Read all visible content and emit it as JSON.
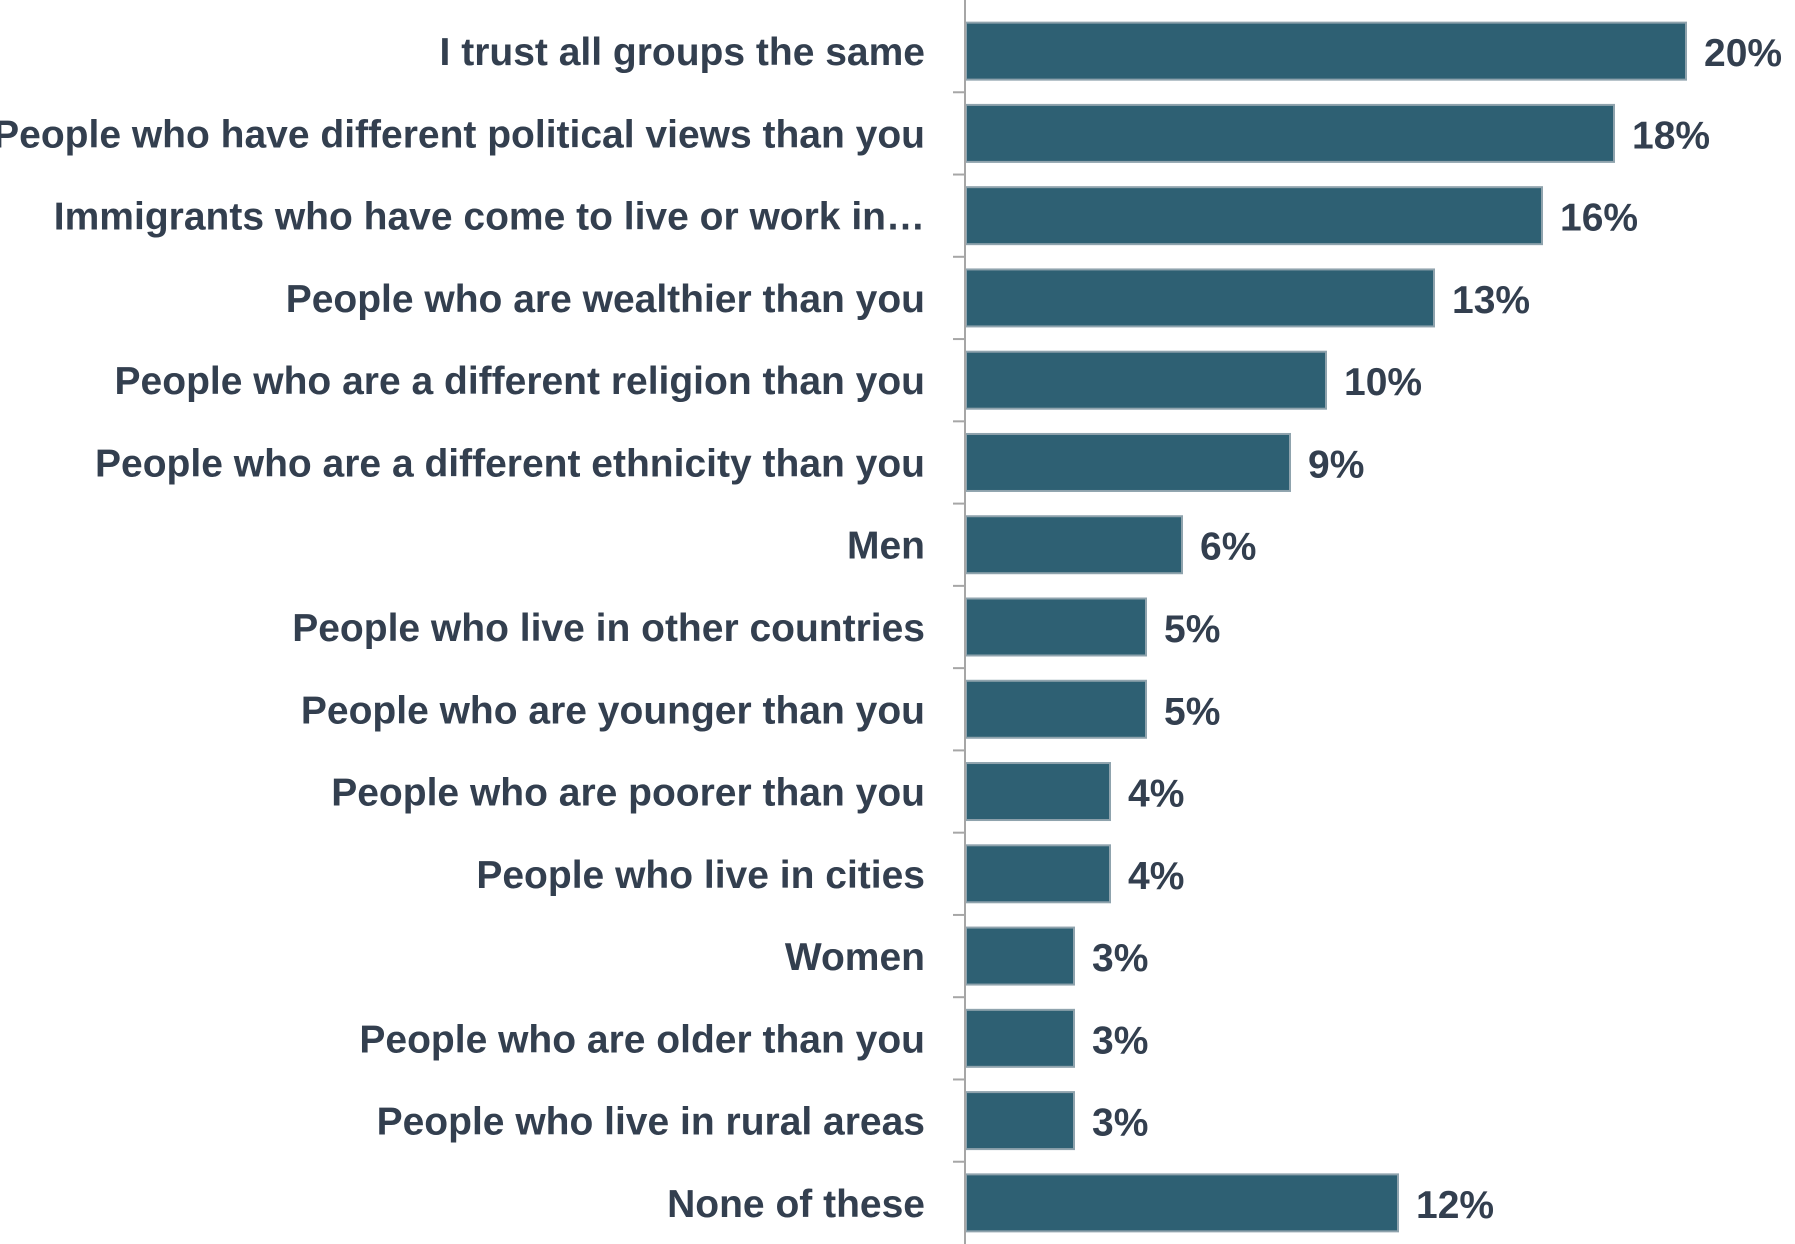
{
  "chart_data": {
    "type": "bar",
    "orientation": "horizontal",
    "title": "",
    "xlabel": "",
    "ylabel": "",
    "xlim": [
      0,
      21
    ],
    "grid": false,
    "legend": "none",
    "bar_color": "#2e6073",
    "categories": [
      "I trust all groups the same",
      "People who have different political views than you",
      "Immigrants who have come to live or work in…",
      "People who are wealthier than you",
      "People who are a different religion than you",
      "People who are a different ethnicity than you",
      "Men",
      "People who live in other countries",
      "People who are younger than you",
      "People who are poorer than you",
      "People who live in cities",
      "Women",
      "People who are older than you",
      "People who live in rural areas",
      "None of these"
    ],
    "values": [
      20,
      18,
      16,
      13,
      10,
      9,
      6,
      5,
      5,
      4,
      4,
      3,
      3,
      3,
      12
    ],
    "value_labels": [
      "20%",
      "18%",
      "16%",
      "13%",
      "10%",
      "9%",
      "6%",
      "5%",
      "5%",
      "4%",
      "4%",
      "3%",
      "3%",
      "3%",
      "12%"
    ]
  }
}
